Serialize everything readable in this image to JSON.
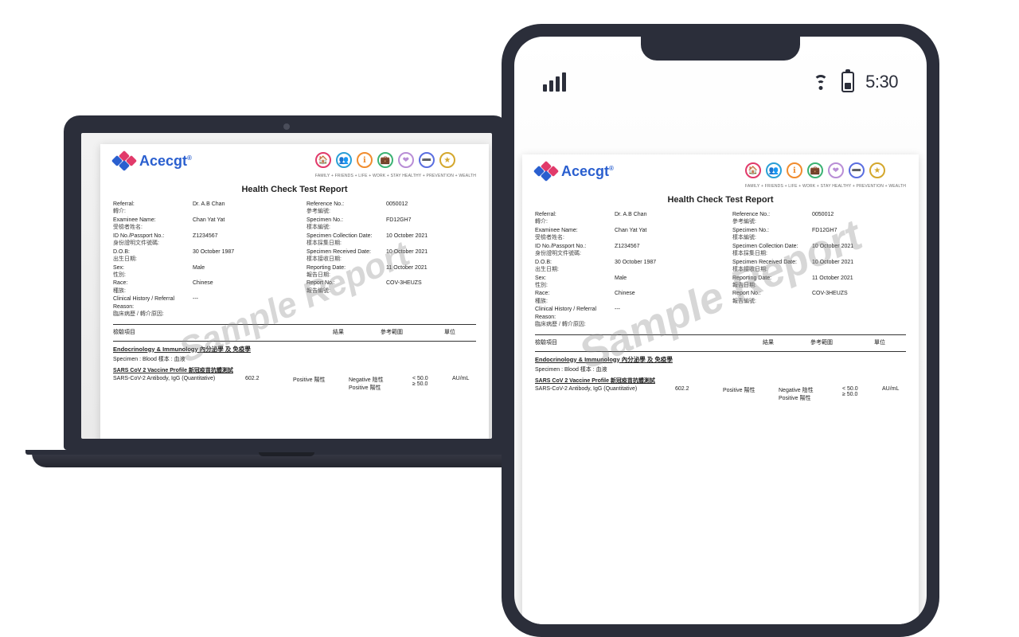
{
  "phone_status": {
    "time": "5:30"
  },
  "logo": {
    "text": "Acecgt"
  },
  "badges": {
    "items": [
      {
        "icon": "🏠",
        "color": "#e13a6a"
      },
      {
        "icon": "👥",
        "color": "#2a9fd6"
      },
      {
        "icon": "ℹ",
        "color": "#f08c2e"
      },
      {
        "icon": "💼",
        "color": "#3bb273"
      },
      {
        "icon": "❤",
        "color": "#b98ed6"
      },
      {
        "icon": "➖",
        "color": "#5a6ee0"
      },
      {
        "icon": "★",
        "color": "#d4a72c"
      }
    ],
    "label_text": "FAMILY + FRIENDS + LIFE + WORK + STAY HEALTHY + PREVENTION + WEALTH"
  },
  "report": {
    "title": "Health Check Test Report",
    "watermark": "Sample Report",
    "left_fields": [
      {
        "en": "Referral:",
        "zh": "轉介:",
        "val": "Dr. A.B Chan"
      },
      {
        "en": "Examinee Name:",
        "zh": "受檢者姓名:",
        "val": "Chan Yat Yat"
      },
      {
        "en": "ID No./Passport No.:",
        "zh": "身份證明文件號碼:",
        "val": "Z1234567"
      },
      {
        "en": "D.O.B:",
        "zh": "出生日期:",
        "val": "30 October 1987"
      },
      {
        "en": "Sex:",
        "zh": "性別:",
        "val": "Male"
      },
      {
        "en": "Race:",
        "zh": "種族:",
        "val": "Chinese"
      },
      {
        "en": "Clinical History / Referral Reason:",
        "zh": "臨床病歷 / 轉介原因:",
        "val": "---"
      }
    ],
    "right_fields": [
      {
        "en": "Reference No.:",
        "zh": "參考編號:",
        "val": "0050012"
      },
      {
        "en": "Specimen No.:",
        "zh": "樣本編號:",
        "val": "FD12GH7"
      },
      {
        "en": "Specimen Collection Date:",
        "zh": "樣本採集日期:",
        "val": "10 October 2021"
      },
      {
        "en": "Specimen Received Date:",
        "zh": "樣本接收日期:",
        "val": "10 October 2021"
      },
      {
        "en": "Reporting Date:",
        "zh": "報告日期:",
        "val": "11 October 2021"
      },
      {
        "en": "Report No.:",
        "zh": "報告編號:",
        "val": "COV-3HEUZS"
      }
    ],
    "column_headers": {
      "c1": "檢驗項目",
      "c2": "結果",
      "c3": "參考範圍",
      "c4": "單位"
    },
    "section": "Endocrinology & Immunology 內分泌學 及 免疫學",
    "specimen_line": "Specimen : Blood 樣本 : 血液",
    "test_name": "SARS CoV 2 Vaccine Profile 新冠疫苗抗體測試",
    "result": {
      "name": "SARS-CoV-2 Antibody, IgG (Quantitative)",
      "value": "602.2",
      "flag": "Positive 陽性",
      "ref1": "Negative 陰性",
      "ref1_range": "< 50.0",
      "ref2": "Positive 陽性",
      "ref2_range": "≥ 50.0",
      "unit": "AU/mL"
    }
  }
}
